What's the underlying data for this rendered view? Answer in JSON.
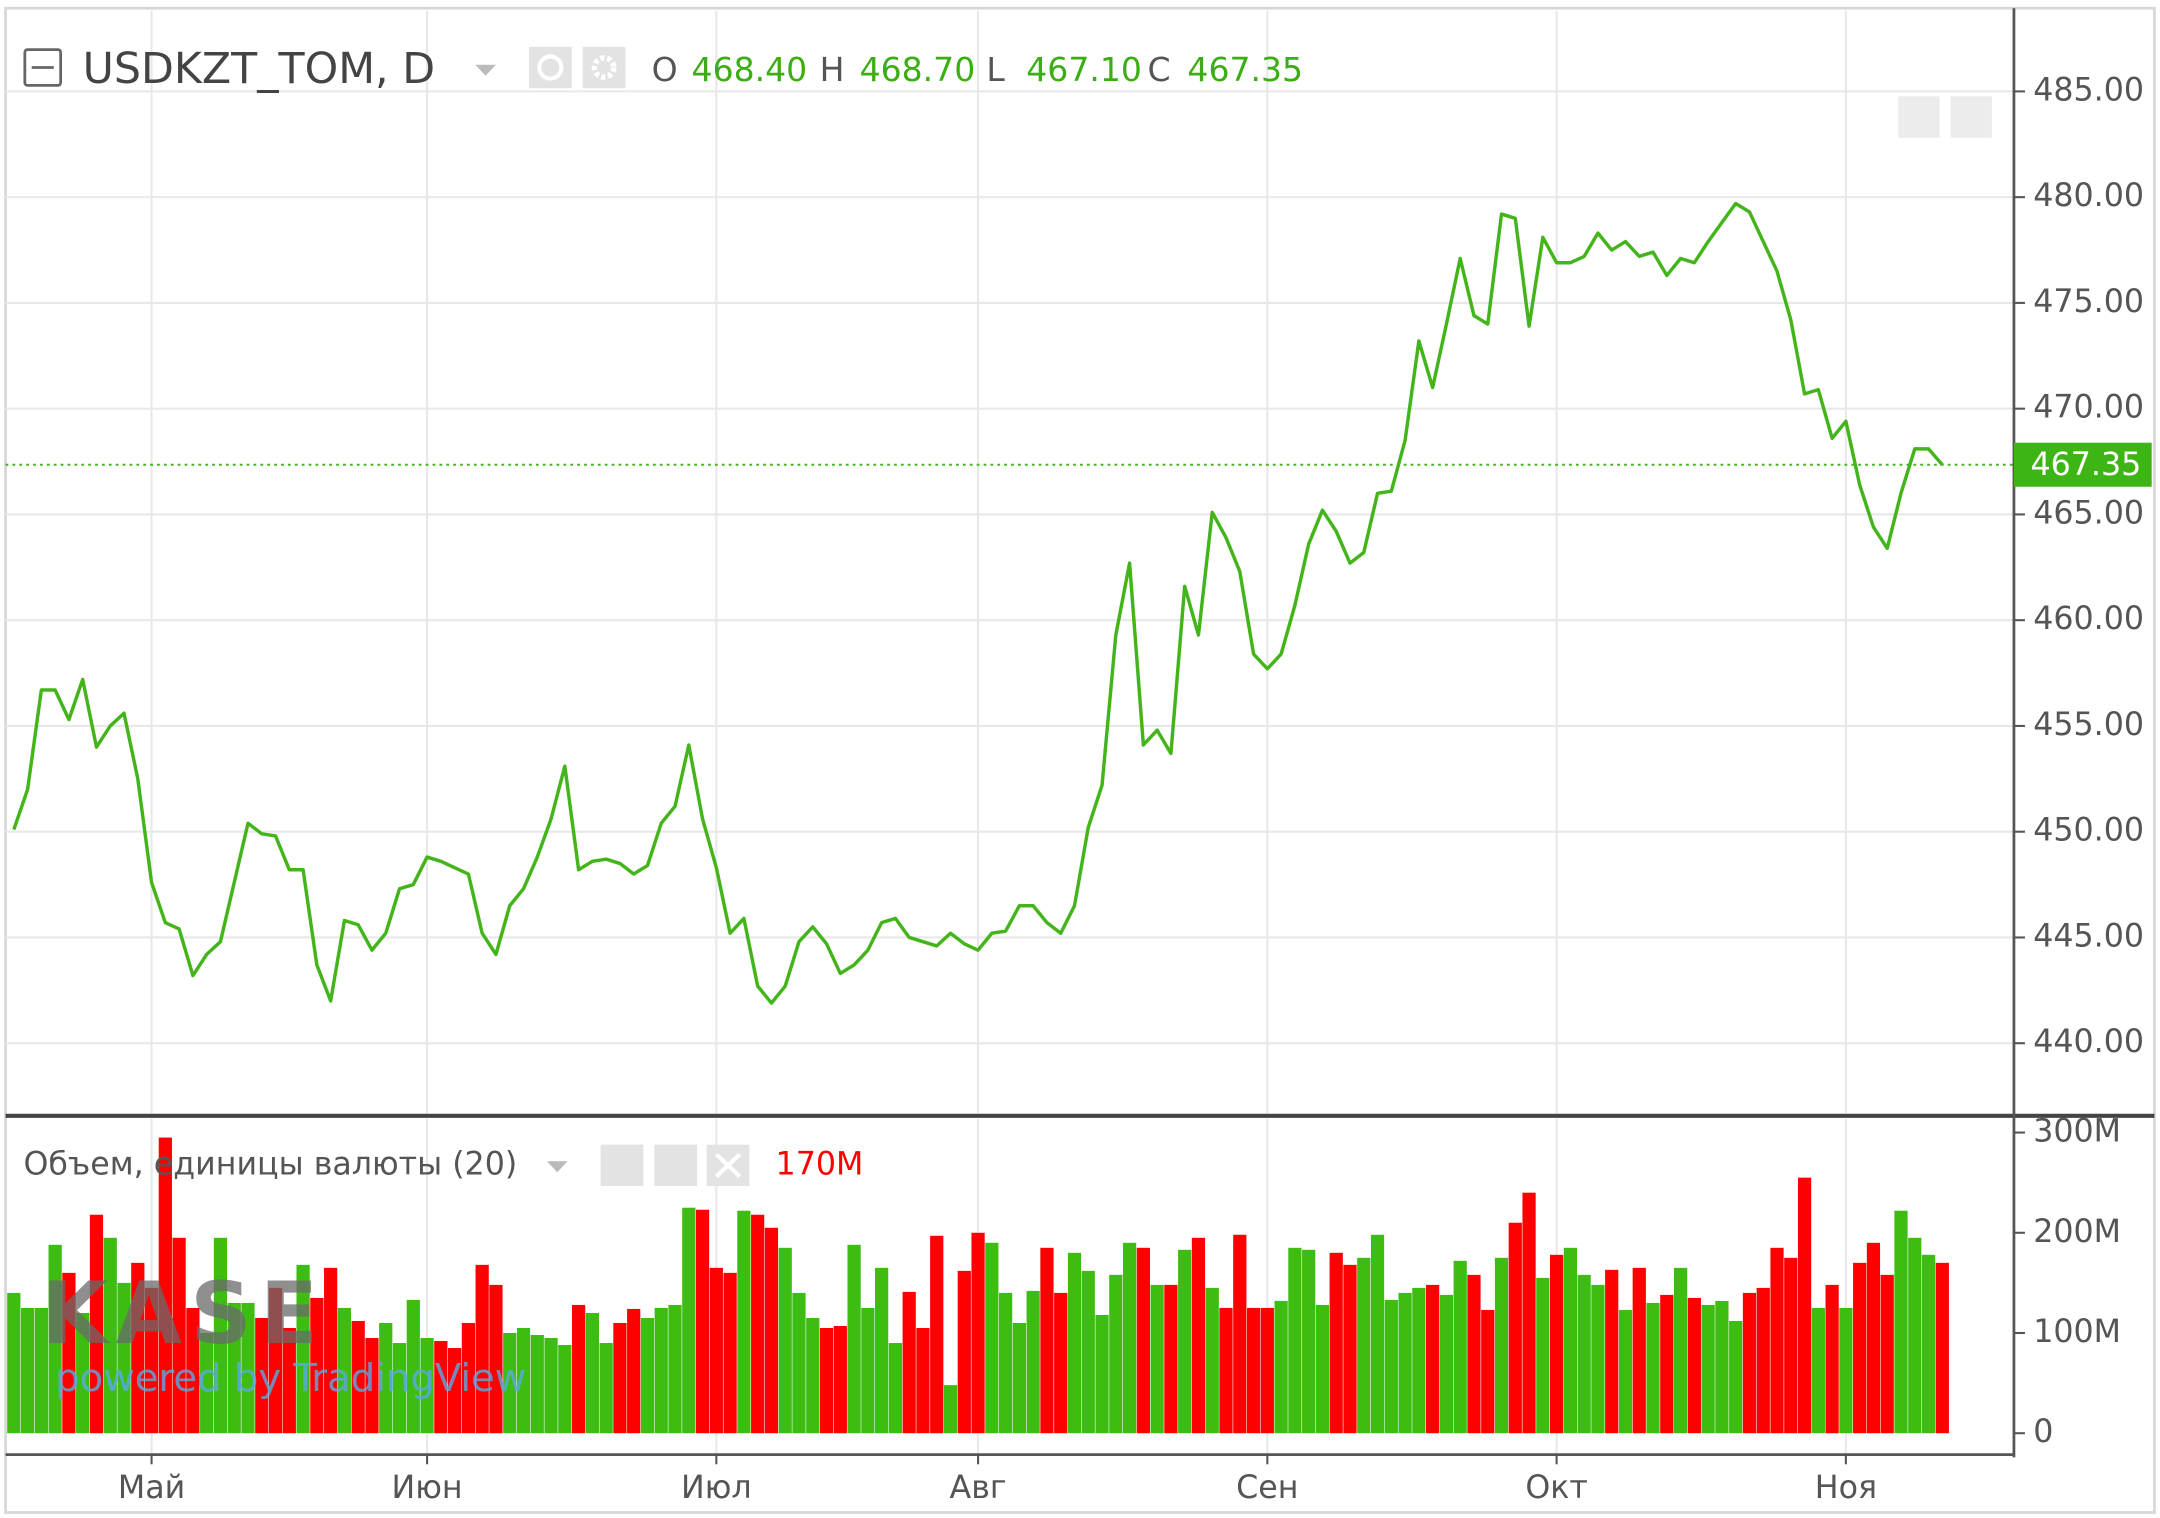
{
  "chart_data": [
    {
      "type": "line",
      "title": "USDKZT_TOM, D",
      "ohlc": [
        {
          "key": "O",
          "value": "468.40"
        },
        {
          "key": "H",
          "value": "468.70"
        },
        {
          "key": "L",
          "value": "467.10"
        },
        {
          "key": "C",
          "value": "467.35"
        }
      ],
      "color": "#43b51b",
      "values": [
        450.1,
        452.0,
        456.7,
        456.7,
        455.3,
        457.2,
        454.0,
        455.0,
        455.6,
        452.5,
        447.6,
        445.7,
        445.4,
        443.2,
        444.2,
        444.8,
        447.6,
        450.4,
        449.9,
        449.8,
        448.2,
        448.2,
        443.7,
        442.0,
        445.8,
        445.6,
        444.4,
        445.2,
        447.3,
        447.5,
        448.8,
        448.6,
        448.3,
        448.0,
        445.2,
        444.2,
        446.5,
        447.3,
        448.8,
        450.6,
        453.1,
        448.2,
        448.6,
        448.7,
        448.5,
        448.0,
        448.4,
        450.4,
        451.2,
        454.1,
        450.6,
        448.3,
        445.2,
        445.9,
        442.7,
        441.9,
        442.7,
        444.8,
        445.5,
        444.7,
        443.3,
        443.7,
        444.4,
        445.7,
        445.9,
        445.0,
        444.8,
        444.6,
        445.2,
        444.7,
        444.4,
        445.2,
        445.3,
        446.5,
        446.5,
        445.7,
        445.2,
        446.5,
        450.2,
        452.2,
        459.3,
        462.7,
        454.1,
        454.8,
        453.7,
        461.6,
        459.3,
        465.1,
        463.9,
        462.3,
        458.4,
        457.7,
        458.4,
        460.7,
        463.6,
        465.2,
        464.2,
        462.7,
        463.2,
        466.0,
        466.1,
        468.5,
        473.2,
        471.0,
        474.0,
        477.1,
        474.4,
        474.0,
        479.2,
        479.0,
        473.9,
        478.1,
        476.9,
        476.9,
        477.2,
        478.3,
        477.5,
        477.9,
        477.2,
        477.4,
        476.3,
        477.1,
        476.9,
        477.9,
        478.8,
        479.7,
        479.3,
        477.9,
        476.5,
        474.2,
        470.7,
        470.9,
        468.6,
        469.4,
        466.4,
        464.4,
        463.4,
        466.0,
        468.1,
        468.1,
        467.35
      ],
      "ylim": [
        436.7,
        488.8
      ],
      "yticks": [
        {
          "value": 440,
          "label": "440.00"
        },
        {
          "value": 445,
          "label": "445.00"
        },
        {
          "value": 450,
          "label": "450.00"
        },
        {
          "value": 455,
          "label": "455.00"
        },
        {
          "value": 460,
          "label": "460.00"
        },
        {
          "value": 465,
          "label": "465.00"
        },
        {
          "value": 470,
          "label": "470.00"
        },
        {
          "value": 475,
          "label": "475.00"
        },
        {
          "value": 480,
          "label": "480.00"
        },
        {
          "value": 485,
          "label": "485.00"
        }
      ],
      "grid": true,
      "watermark": "KASE",
      "credit": "powered by TradingView"
    },
    {
      "type": "bar",
      "title": "Объем, единицы валюты (20)",
      "last_label": "170M",
      "up_color": "#3dbd12",
      "down_color": "#ff0000",
      "categories": [
        null,
        null,
        null,
        null,
        null,
        null,
        null,
        null,
        null,
        null,
        "Май",
        null,
        null,
        null,
        null,
        null,
        null,
        null,
        null,
        null,
        null,
        null,
        null,
        null,
        null,
        null,
        null,
        null,
        null,
        null,
        "Июн",
        null,
        null,
        null,
        null,
        null,
        null,
        null,
        null,
        null,
        null,
        null,
        null,
        null,
        null,
        null,
        null,
        null,
        null,
        null,
        null,
        "Июл",
        null,
        null,
        null,
        null,
        null,
        null,
        null,
        null,
        null,
        null,
        null,
        null,
        null,
        null,
        null,
        null,
        null,
        null,
        "Авг",
        null,
        null,
        null,
        null,
        null,
        null,
        null,
        null,
        null,
        null,
        null,
        null,
        null,
        null,
        null,
        null,
        null,
        null,
        null,
        null,
        "Сен",
        null,
        null,
        null,
        null,
        null,
        null,
        null,
        null,
        null,
        null,
        null,
        null,
        null,
        null,
        null,
        null,
        null,
        null,
        null,
        null,
        "Окт",
        null,
        null,
        null,
        null,
        null,
        null,
        null,
        null,
        null,
        null,
        null,
        null,
        null,
        null,
        null,
        null,
        null,
        null,
        null,
        null,
        "Ноя",
        null,
        null,
        null,
        null,
        null,
        null,
        null
      ],
      "values": [
        140,
        125,
        125,
        188,
        160,
        120,
        218,
        195,
        150,
        170,
        145,
        295,
        195,
        125,
        100,
        195,
        130,
        130,
        115,
        145,
        105,
        168,
        135,
        165,
        125,
        112,
        95,
        110,
        90,
        133,
        95,
        92,
        85,
        110,
        168,
        148,
        100,
        105,
        98,
        95,
        88,
        128,
        120,
        90,
        110,
        124,
        115,
        125,
        128,
        225,
        223,
        165,
        160,
        222,
        218,
        205,
        185,
        140,
        115,
        105,
        107,
        188,
        125,
        165,
        90,
        141,
        105,
        197,
        48,
        162,
        200,
        190,
        140,
        110,
        142,
        185,
        140,
        180,
        162,
        118,
        158,
        190,
        185,
        148,
        148,
        183,
        195,
        145,
        125,
        198,
        125,
        125,
        132,
        185,
        183,
        128,
        180,
        168,
        175,
        198,
        133,
        140,
        145,
        148,
        138,
        172,
        158,
        123,
        175,
        210,
        240,
        155,
        178,
        185,
        158,
        148,
        163,
        123,
        165,
        130,
        138,
        165,
        135,
        128,
        132,
        112,
        140,
        145,
        185,
        175,
        255,
        125,
        148,
        125,
        170,
        190,
        158,
        222,
        195,
        178,
        170
      ],
      "ylim": [
        -20,
        314
      ],
      "yticks": [
        0,
        {
          "value": 100,
          "label": "100M"
        },
        {
          "value": 200,
          "label": "200M"
        },
        {
          "value": 300,
          "label": "300M"
        }
      ]
    }
  ]
}
